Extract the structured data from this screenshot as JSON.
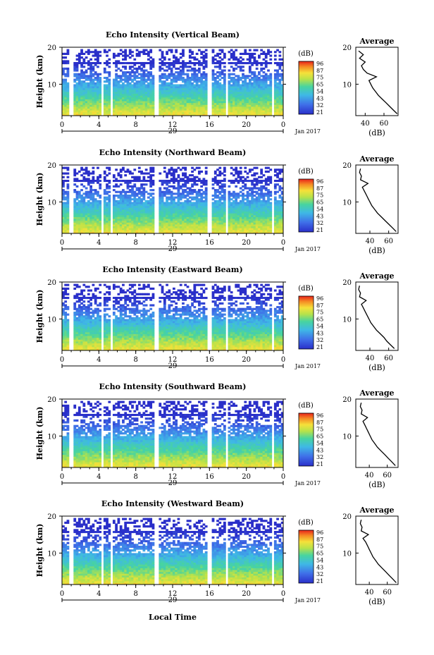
{
  "figure": {
    "xlabel": "Local Time",
    "date_label": "Jan 2017",
    "colorbar_unit": "(dB)",
    "colorbar_ticks": [
      "96",
      "87",
      "75",
      "65",
      "54",
      "43",
      "32",
      "21"
    ],
    "avg_title": "Average",
    "avg_xlabel": "(dB)",
    "ylabel": "Height (km)"
  },
  "chart_data": [
    {
      "type": "heatmap",
      "title": "Echo Intensity (Vertical Beam)",
      "ylabel": "Height (km)",
      "xlabel": "",
      "x_ticks": [
        "0",
        "4",
        "8",
        "12",
        "16",
        "20",
        "0"
      ],
      "y_ticks": [
        "20",
        "10"
      ],
      "date_marker": "29",
      "xlim": [
        0,
        24
      ],
      "ylim": [
        1.5,
        20
      ],
      "colorbar_range_db": [
        21,
        96
      ],
      "average_profile": {
        "x_ticks": [
          "40",
          "60"
        ],
        "xlim": [
          30,
          75
        ],
        "ylim": [
          1.5,
          20
        ],
        "height_km": [
          2,
          3,
          4,
          5,
          6,
          7,
          8,
          9,
          10,
          11,
          12,
          13,
          14,
          15,
          16,
          17,
          18,
          19
        ],
        "db": [
          74,
          70,
          66,
          62,
          58,
          54,
          51,
          48,
          46,
          44,
          52,
          42,
          38,
          36,
          40,
          34,
          38,
          33
        ]
      }
    },
    {
      "type": "heatmap",
      "title": "Echo Intensity (Northward Beam)",
      "ylabel": "Height (km)",
      "xlabel": "",
      "x_ticks": [
        "0",
        "4",
        "8",
        "12",
        "16",
        "20",
        "0"
      ],
      "y_ticks": [
        "20",
        "10"
      ],
      "date_marker": "29",
      "xlim": [
        0,
        24
      ],
      "ylim": [
        1.5,
        20
      ],
      "colorbar_range_db": [
        21,
        96
      ],
      "average_profile": {
        "x_ticks": [
          "40",
          "60"
        ],
        "xlim": [
          25,
          70
        ],
        "ylim": [
          1.5,
          20
        ],
        "height_km": [
          2,
          3,
          4,
          5,
          6,
          7,
          8,
          9,
          10,
          11,
          12,
          13,
          14,
          15,
          16,
          17,
          18,
          19
        ],
        "db": [
          68,
          64,
          60,
          56,
          52,
          48,
          45,
          42,
          40,
          38,
          36,
          34,
          32,
          38,
          30,
          31,
          29,
          30
        ]
      }
    },
    {
      "type": "heatmap",
      "title": "Echo Intensity (Eastward Beam)",
      "ylabel": "Height (km)",
      "xlabel": "",
      "x_ticks": [
        "0",
        "4",
        "8",
        "12",
        "16",
        "20",
        "0"
      ],
      "y_ticks": [
        "20",
        "10"
      ],
      "date_marker": "29",
      "xlim": [
        0,
        24
      ],
      "ylim": [
        1.5,
        20
      ],
      "colorbar_range_db": [
        21,
        96
      ],
      "average_profile": {
        "x_ticks": [
          "40",
          "60"
        ],
        "xlim": [
          25,
          70
        ],
        "ylim": [
          1.5,
          20
        ],
        "height_km": [
          2,
          3,
          4,
          5,
          6,
          7,
          8,
          9,
          10,
          11,
          12,
          13,
          14,
          15,
          16,
          17,
          18,
          19
        ],
        "db": [
          66,
          62,
          58,
          55,
          51,
          47,
          44,
          41,
          39,
          37,
          35,
          33,
          31,
          36,
          29,
          30,
          28,
          29
        ]
      }
    },
    {
      "type": "heatmap",
      "title": "Echo Intensity (Southward Beam)",
      "ylabel": "Height (km)",
      "xlabel": "",
      "x_ticks": [
        "0",
        "4",
        "8",
        "12",
        "16",
        "20",
        "0"
      ],
      "y_ticks": [
        "20",
        "10"
      ],
      "date_marker": "29",
      "xlim": [
        0,
        24
      ],
      "ylim": [
        1.5,
        20
      ],
      "colorbar_range_db": [
        21,
        96
      ],
      "average_profile": {
        "x_ticks": [
          "40",
          "60"
        ],
        "xlim": [
          25,
          72
        ],
        "ylim": [
          1.5,
          20
        ],
        "height_km": [
          2,
          3,
          4,
          5,
          6,
          7,
          8,
          9,
          10,
          11,
          12,
          13,
          14,
          15,
          16,
          17,
          18,
          19
        ],
        "db": [
          69,
          65,
          61,
          57,
          53,
          49,
          46,
          43,
          41,
          39,
          37,
          35,
          33,
          38,
          31,
          32,
          30,
          31
        ]
      }
    },
    {
      "type": "heatmap",
      "title": "Echo Intensity (Westward Beam)",
      "ylabel": "Height (km)",
      "xlabel": "Local Time",
      "x_ticks": [
        "0",
        "4",
        "8",
        "12",
        "16",
        "20",
        "0"
      ],
      "y_ticks": [
        "20",
        "10"
      ],
      "date_marker": "29",
      "xlim": [
        0,
        24
      ],
      "ylim": [
        1.5,
        20
      ],
      "colorbar_range_db": [
        21,
        96
      ],
      "average_profile": {
        "x_ticks": [
          "40",
          "60"
        ],
        "xlim": [
          25,
          72
        ],
        "ylim": [
          1.5,
          20
        ],
        "height_km": [
          2,
          3,
          4,
          5,
          6,
          7,
          8,
          9,
          10,
          11,
          12,
          13,
          14,
          15,
          16,
          17,
          18,
          19
        ],
        "db": [
          70,
          66,
          62,
          58,
          54,
          50,
          47,
          44,
          42,
          40,
          38,
          36,
          33,
          39,
          31,
          32,
          30,
          31
        ]
      }
    }
  ]
}
